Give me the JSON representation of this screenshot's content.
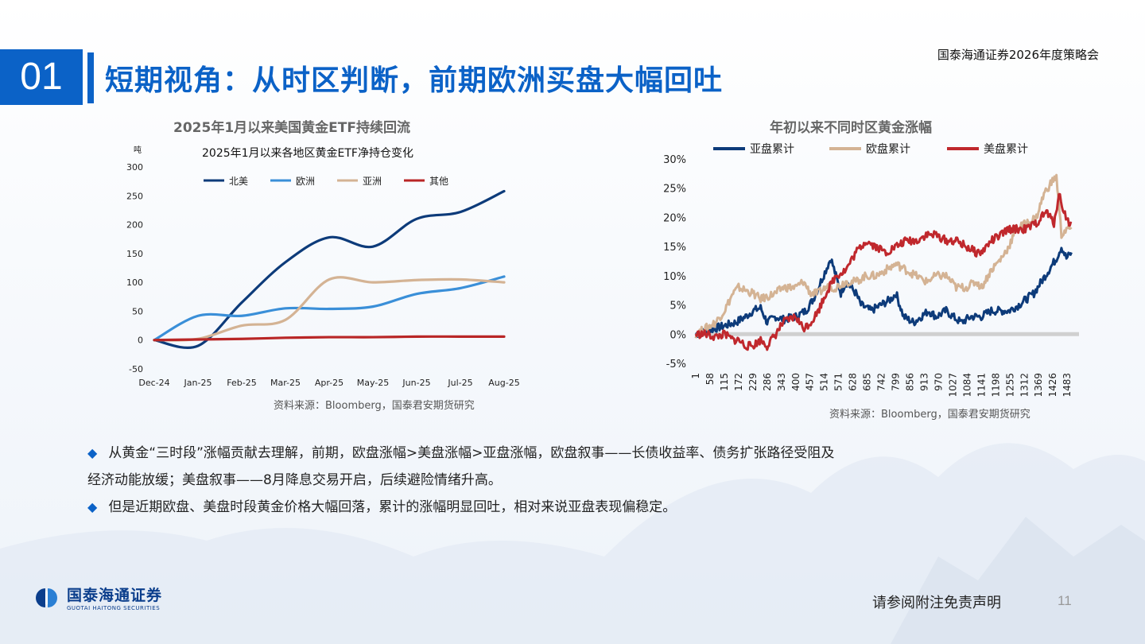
{
  "header": {
    "number": "01",
    "title": "短期视角：从时区判断，前期欧洲买盘大幅回吐",
    "right_text": "国泰海通证券2026年度策略会"
  },
  "left_chart": {
    "outer_title": "2025年1月以来美国黄金ETF持续回流",
    "source": "资料来源：Bloomberg，国泰君安期货研究"
  },
  "right_chart": {
    "outer_title": "年初以来不同时区黄金涨幅",
    "source": "资料来源：Bloomberg，国泰君安期货研究"
  },
  "bullets": [
    "从黄金“三时段”涨幅贡献去理解，前期，欧盘涨幅>美盘涨幅>亚盘涨幅，欧盘叙事——长债收益率、债务扩张路径受阻及",
    "经济动能放缓；美盘叙事——8月降息交易开启，后续避险情绪升高。",
    "但是近期欧盘、美盘时段黄金价格大幅回落，累计的涨幅明显回吐，相对来说亚盘表现偏稳定。"
  ],
  "footer": {
    "logo_cn": "国泰海通证券",
    "logo_en": "GUOTAI HAITONG SECURITIES",
    "disclaimer": "请参阅附注免责声明",
    "page": "11"
  },
  "colors": {
    "accent": "#0b62c7",
    "north_america": "#0d3b7a",
    "europe": "#3a8fd8",
    "asia": "#d4b394",
    "other": "#b92626",
    "asia_session": "#0d3b7a",
    "europe_session": "#d4b394",
    "us_session": "#c0282d"
  },
  "chart_data": [
    {
      "type": "line",
      "title": "2025年1月以来各地区黄金ETF净持仓变化",
      "ylabel": "吨",
      "categories": [
        "Dec-24",
        "Jan-25",
        "Feb-25",
        "Mar-25",
        "Apr-25",
        "May-25",
        "Jun-25",
        "Jul-25",
        "Aug-25"
      ],
      "ylim": [
        -50,
        300
      ],
      "yticks": [
        "300",
        "250",
        "200",
        "150",
        "100",
        "50",
        "0",
        "-50"
      ],
      "legend_position": "top",
      "series": [
        {
          "name": "北美",
          "values": [
            0,
            -10,
            65,
            135,
            178,
            162,
            210,
            222,
            258
          ]
        },
        {
          "name": "欧洲",
          "values": [
            0,
            42,
            42,
            55,
            54,
            58,
            80,
            90,
            110
          ]
        },
        {
          "name": "亚洲",
          "values": [
            0,
            2,
            25,
            35,
            105,
            100,
            104,
            105,
            100
          ]
        },
        {
          "name": "其他",
          "values": [
            0,
            1,
            2,
            4,
            5,
            5,
            6,
            6,
            6
          ]
        }
      ]
    },
    {
      "type": "line",
      "title": "",
      "x_ticks": [
        "1",
        "58",
        "115",
        "172",
        "229",
        "286",
        "343",
        "400",
        "457",
        "514",
        "571",
        "628",
        "685",
        "742",
        "799",
        "856",
        "913",
        "970",
        "1027",
        "1084",
        "1141",
        "1198",
        "1255",
        "1312",
        "1369",
        "1426",
        "1483"
      ],
      "x_max": 1530,
      "ylim": [
        -5,
        30
      ],
      "yticks": [
        "30%",
        "25%",
        "20%",
        "15%",
        "10%",
        "5%",
        "0%",
        "-5%"
      ],
      "legend_position": "top",
      "series": [
        {
          "name": "亚盘累计",
          "x": [
            1,
            40,
            80,
            120,
            160,
            200,
            229,
            260,
            286,
            320,
            350,
            400,
            440,
            470,
            500,
            520,
            540,
            560,
            580,
            600,
            640,
            660,
            700,
            740,
            780,
            800,
            830,
            870,
            900,
            930,
            960,
            1000,
            1027,
            1060,
            1100,
            1140,
            1180,
            1220,
            1250,
            1290,
            1320,
            1350,
            1380,
            1410,
            1440,
            1460,
            1480,
            1500
          ],
          "values": [
            0,
            0.5,
            1,
            1.5,
            2,
            3,
            4,
            4.5,
            2,
            3,
            2.5,
            3,
            4,
            6,
            9,
            11,
            13,
            10,
            7,
            9,
            7,
            5,
            4,
            5,
            6,
            7,
            3,
            2,
            3,
            4,
            3,
            4,
            3,
            2,
            3,
            3,
            4,
            4,
            4,
            5,
            6,
            7,
            9,
            11,
            13,
            15,
            13,
            14
          ]
        },
        {
          "name": "欧盘累计",
          "x": [
            1,
            40,
            80,
            115,
            150,
            172,
            200,
            229,
            260,
            290,
            320,
            350,
            400,
            430,
            460,
            490,
            520,
            560,
            600,
            640,
            680,
            720,
            760,
            800,
            840,
            880,
            920,
            960,
            1000,
            1040,
            1080,
            1120,
            1141,
            1180,
            1220,
            1250,
            1280,
            1320,
            1360,
            1390,
            1420,
            1440,
            1460,
            1480,
            1500
          ],
          "values": [
            0,
            1,
            2,
            4,
            7,
            8,
            7.5,
            7,
            6,
            6.5,
            7,
            8,
            8,
            9,
            7,
            7,
            8,
            8,
            9,
            9,
            10,
            10,
            11,
            12,
            11,
            10,
            9,
            10,
            10,
            8,
            8,
            9,
            8,
            11,
            13,
            15,
            18,
            19,
            20,
            24,
            26,
            27,
            17,
            18,
            18
          ]
        },
        {
          "name": "美盘累计",
          "x": [
            1,
            40,
            80,
            115,
            150,
            172,
            200,
            229,
            260,
            286,
            320,
            350,
            400,
            430,
            460,
            490,
            520,
            560,
            600,
            640,
            680,
            720,
            760,
            800,
            840,
            880,
            920,
            960,
            1000,
            1040,
            1080,
            1120,
            1141,
            1180,
            1220,
            1250,
            1280,
            1320,
            1360,
            1400,
            1430,
            1450,
            1470,
            1490,
            1500
          ],
          "values": [
            0,
            0,
            -0.5,
            0,
            -1,
            -1,
            -2,
            -2,
            -1,
            -2,
            0,
            2,
            3,
            1,
            2,
            4,
            7,
            10,
            11,
            14,
            16,
            15,
            14,
            15,
            16,
            16,
            17,
            17,
            16,
            16,
            15,
            14,
            14,
            16,
            17,
            18,
            18,
            18,
            19,
            21,
            19,
            24,
            21,
            19,
            19
          ]
        }
      ]
    }
  ]
}
